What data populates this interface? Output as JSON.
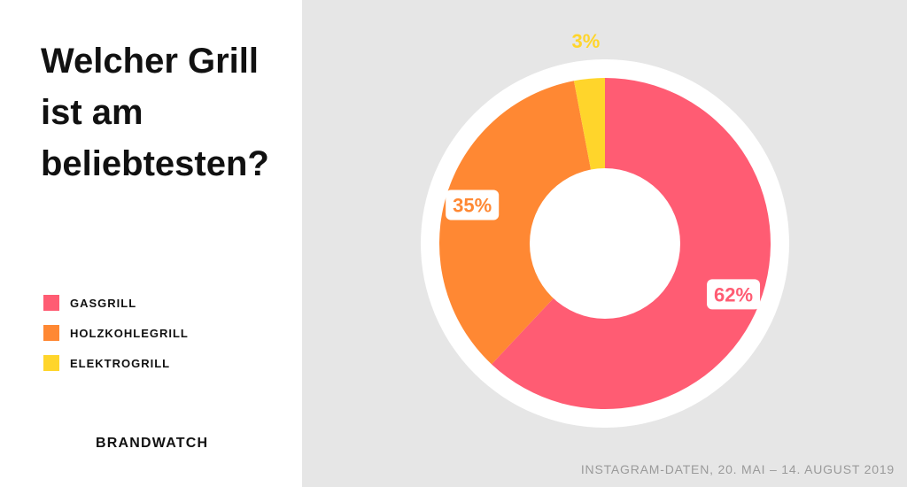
{
  "title": "Welcher Grill ist am beliebtesten?",
  "brand": "BRANDWATCH",
  "source": "INSTAGRAM-DATEN, 20. MAI – 14. AUGUST 2019",
  "legend": [
    {
      "label": "GASGRILL",
      "color": "#ff5c73"
    },
    {
      "label": "HOLZKOHLEGRILL",
      "color": "#ff8833"
    },
    {
      "label": "ELEKTROGRILL",
      "color": "#ffd52b"
    }
  ],
  "chart_data": {
    "type": "pie",
    "donut": true,
    "title": "Welcher Grill ist am beliebtesten?",
    "categories": [
      "GASGRILL",
      "HOLZKOHLEGRILL",
      "ELEKTROGRILL"
    ],
    "values": [
      62,
      35,
      3
    ],
    "labels": [
      "62%",
      "35%",
      "3%"
    ],
    "colors": [
      "#ff5c73",
      "#ff8833",
      "#ffd52b"
    ],
    "legend": "left"
  }
}
